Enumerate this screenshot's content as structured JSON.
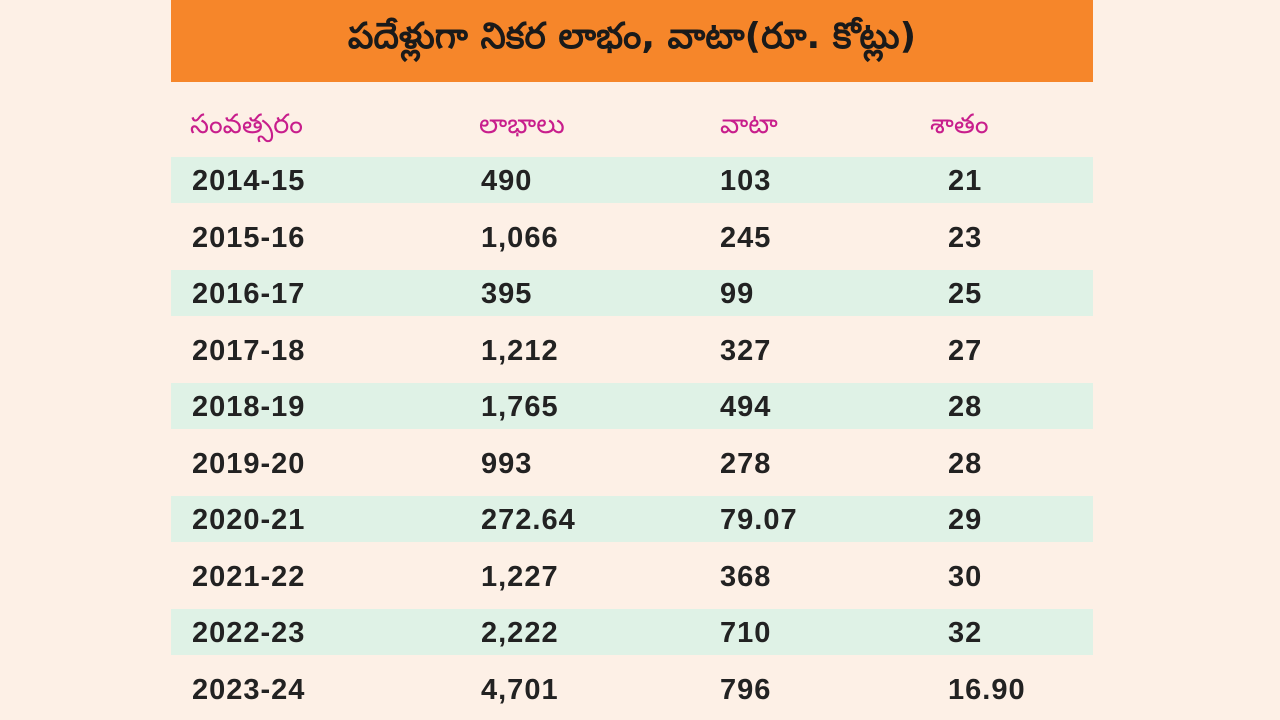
{
  "title": "పదేళ్లుగా నికర లాభం, వాటా(రూ. కోట్లు)",
  "colors": {
    "title_bar": "#f6862a",
    "header_text": "#c81e8c",
    "row_shade": "#dff2e6",
    "background": "#fdf0e6"
  },
  "chart_data": {
    "type": "table",
    "columns": [
      "సంవత్సరం",
      "లాభాలు",
      "వాటా",
      "శాతం"
    ],
    "rows": [
      [
        "2014-15",
        "490",
        "103",
        "21"
      ],
      [
        "2015-16",
        "1,066",
        "245",
        "23"
      ],
      [
        "2016-17",
        "395",
        "99",
        "25"
      ],
      [
        "2017-18",
        "1,212",
        "327",
        "27"
      ],
      [
        "2018-19",
        "1,765",
        "494",
        "28"
      ],
      [
        "2019-20",
        "993",
        "278",
        "28"
      ],
      [
        "2020-21",
        "272.64",
        "79.07",
        "29"
      ],
      [
        "2021-22",
        "1,227",
        "368",
        "30"
      ],
      [
        "2022-23",
        "2,222",
        "710",
        "32"
      ],
      [
        "2023-24",
        "4,701",
        "796",
        "16.90"
      ]
    ]
  }
}
